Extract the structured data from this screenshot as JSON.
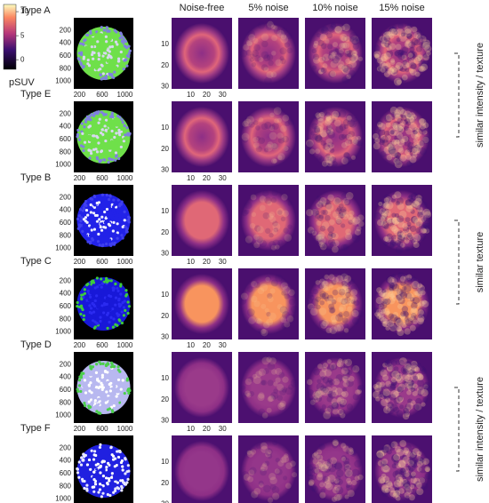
{
  "colorbar": {
    "label": "pSUV",
    "ticks": [
      10,
      5,
      0
    ],
    "lim": [
      -2,
      11.5
    ]
  },
  "columns": [
    "Noise-free",
    "5% noise",
    "10% noise",
    "15% noise"
  ],
  "rows": [
    "Type A",
    "Type E",
    "Type B",
    "Type C",
    "Type D",
    "Type F"
  ],
  "source_axes": {
    "xticks": [
      200,
      600,
      1000
    ],
    "yticks": [
      200,
      400,
      600,
      800,
      1000
    ],
    "xlim": [
      100,
      1150
    ],
    "ylim": [
      0,
      1120
    ]
  },
  "image_axes": {
    "xticks": [
      10,
      20,
      30
    ],
    "yticks": [
      10,
      20,
      30
    ],
    "xlim": [
      -2,
      36
    ],
    "ylim": [
      -2.5,
      31
    ]
  },
  "brackets": [
    "similar intensity / texture",
    "similar texture",
    "similar intensity / texture"
  ]
}
